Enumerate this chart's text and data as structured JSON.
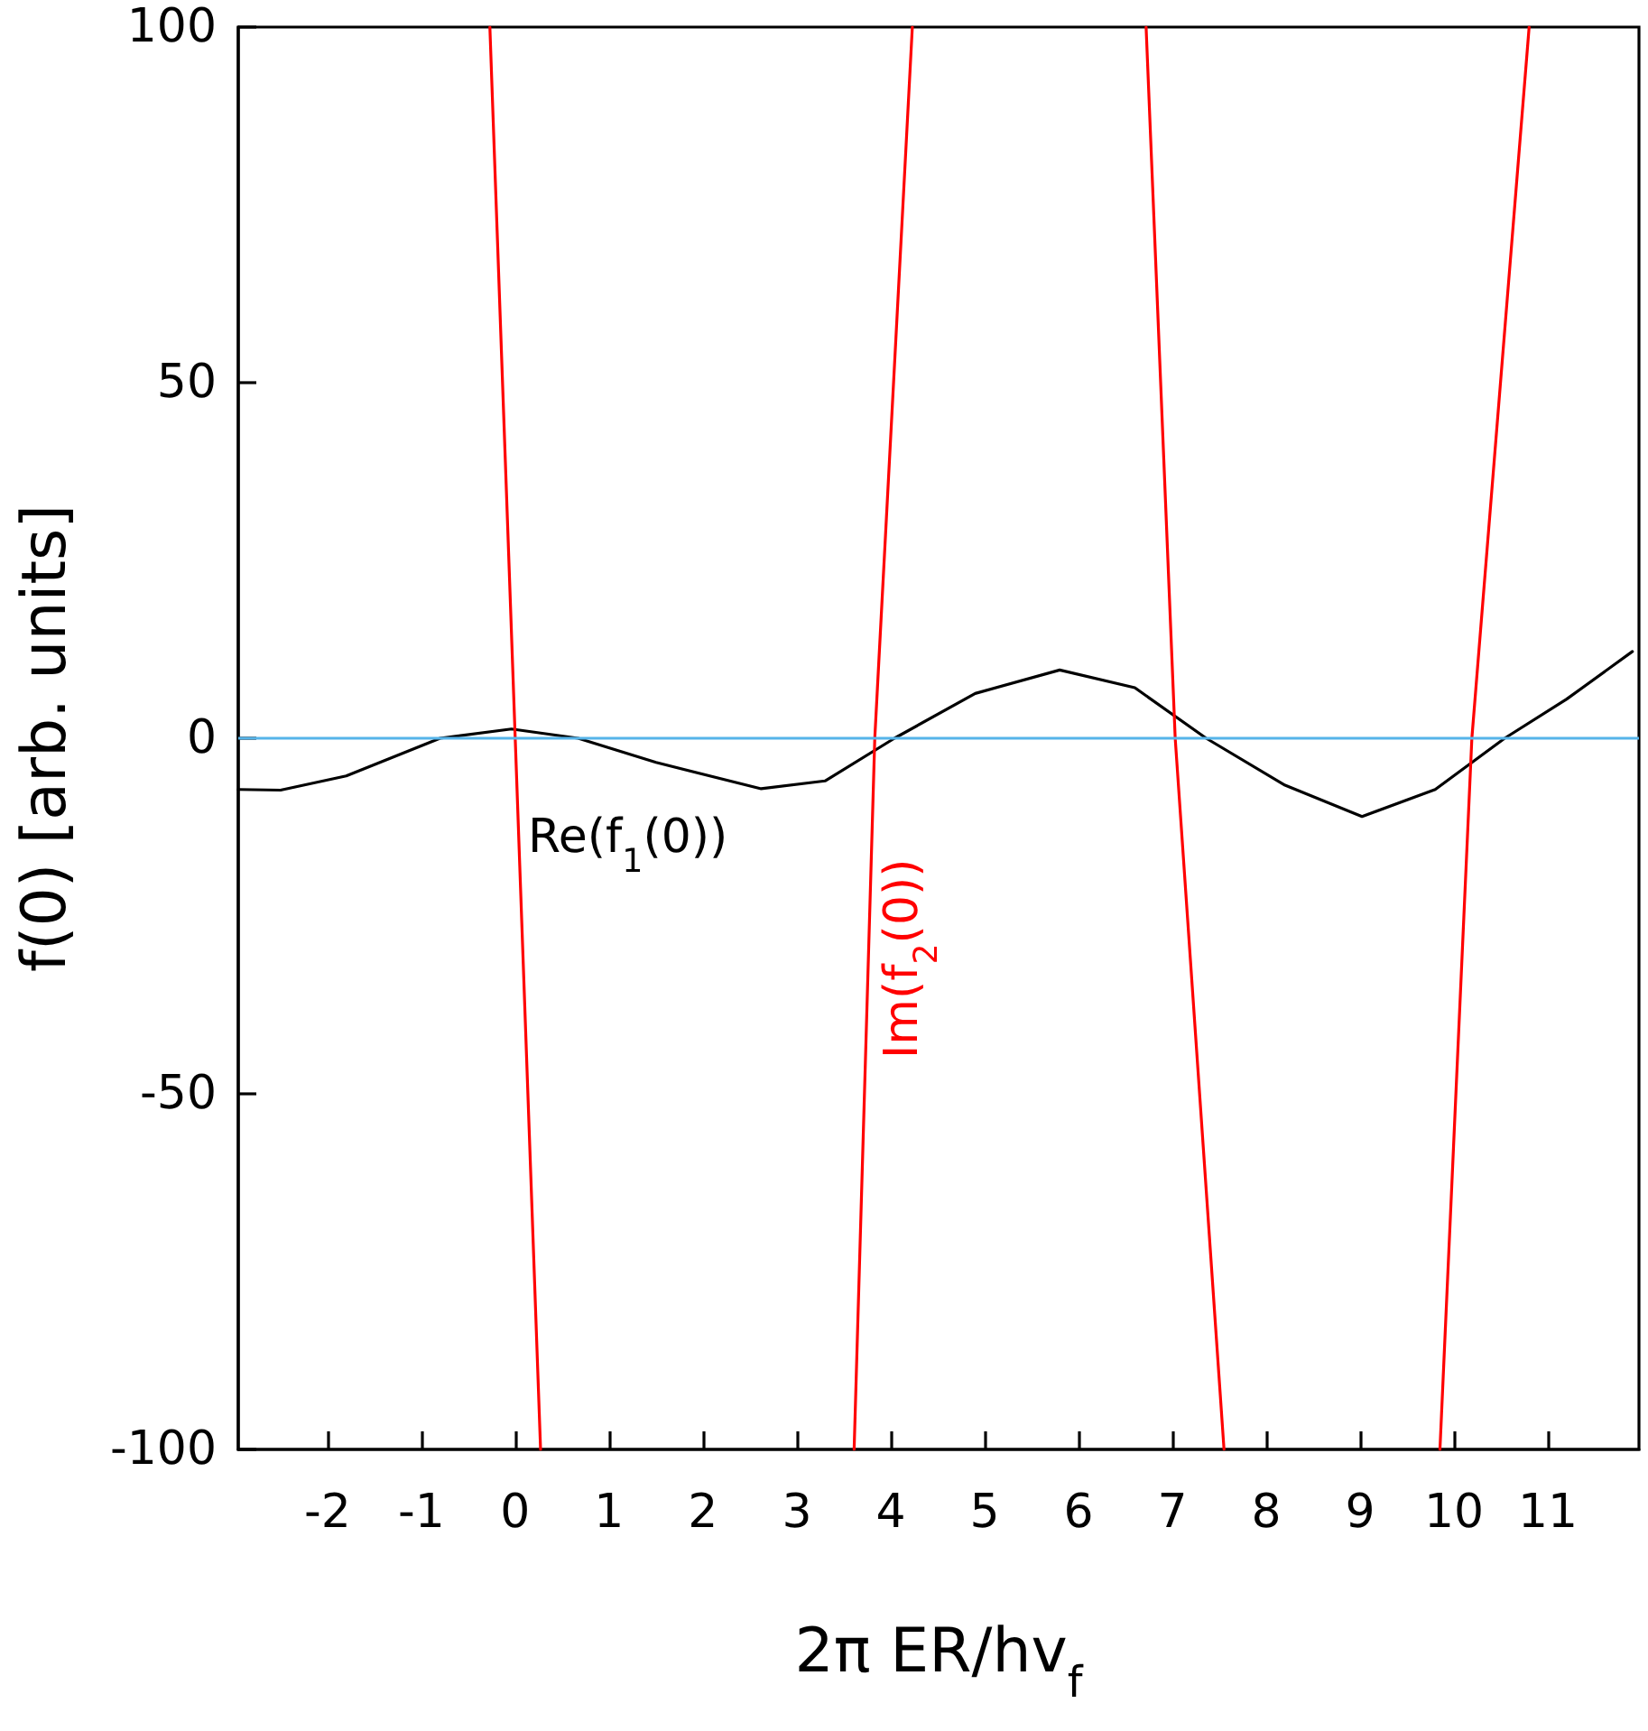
{
  "chart_data": {
    "type": "line",
    "xlabel": "2π ER/hv$_{f}$",
    "ylabel": "f(0) [arb. units]",
    "xlim": [
      -2.95,
      11.97
    ],
    "ylim": [
      -100,
      100
    ],
    "xticks": [
      -2,
      -1,
      0,
      1,
      2,
      3,
      4,
      5,
      6,
      7,
      8,
      9,
      10,
      11
    ],
    "yticks": [
      -100,
      -50,
      0,
      50,
      100
    ],
    "grid": false,
    "legend": false,
    "marker": "none",
    "line_style": "solid",
    "series": [
      {
        "name": "Re(f$_{1}$(0))",
        "color": "#000000",
        "x": [
          -2.95,
          -2.5,
          -1.8,
          -0.8,
          -0.04,
          0.67,
          1.5,
          2.62,
          3.3,
          4.04,
          4.9,
          5.8,
          6.6,
          7.36,
          8.2,
          9.02,
          9.8,
          10.54,
          11.2,
          11.9
        ],
        "values": [
          -7.2,
          -7.3,
          -5.3,
          0,
          1.3,
          0,
          -3.4,
          -7.1,
          -6,
          0,
          6.3,
          9.6,
          7.1,
          0,
          -6.6,
          -11,
          -7.2,
          0,
          5.5,
          12.2
        ]
      },
      {
        "name": "Im(f$_{2}$(0))",
        "color": "#ff0000",
        "x": [
          -0.27,
          0,
          0.27,
          1.9,
          3.61,
          3.83,
          4.23,
          5.5,
          6.72,
          7.03,
          7.55,
          8.7,
          9.85,
          10.19,
          10.8
        ],
        "values": [
          100,
          0,
          -100,
          null,
          -100,
          0,
          100,
          null,
          100,
          0,
          -100,
          null,
          -100,
          0,
          100
        ]
      }
    ],
    "ref_lines": [
      {
        "axis": "y",
        "value": 0,
        "color": "#56b4e9",
        "line_style": "solid"
      }
    ]
  }
}
